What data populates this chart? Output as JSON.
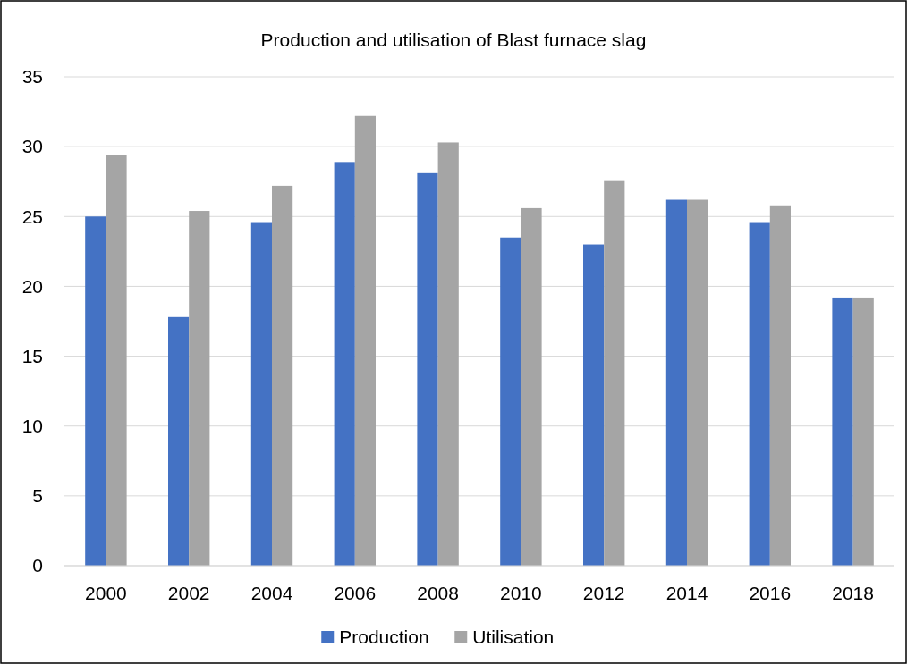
{
  "chart_data": {
    "type": "bar",
    "title": "Production and utilisation of Blast furnace slag",
    "categories": [
      "2000",
      "2002",
      "2004",
      "2006",
      "2008",
      "2010",
      "2012",
      "2014",
      "2016",
      "2018"
    ],
    "series": [
      {
        "name": "Production",
        "color": "#4472c4",
        "values": [
          25.0,
          17.8,
          24.6,
          28.9,
          28.1,
          23.5,
          23.0,
          26.2,
          24.6,
          19.2
        ]
      },
      {
        "name": "Utilisation",
        "color": "#a5a5a5",
        "values": [
          29.4,
          25.4,
          27.2,
          32.2,
          30.3,
          25.6,
          27.6,
          26.2,
          25.8,
          19.2
        ]
      }
    ],
    "ylim": [
      0,
      35
    ],
    "yticks": [
      0,
      5,
      10,
      15,
      20,
      25,
      30,
      35
    ],
    "grid": "y",
    "legend": "bottom"
  }
}
